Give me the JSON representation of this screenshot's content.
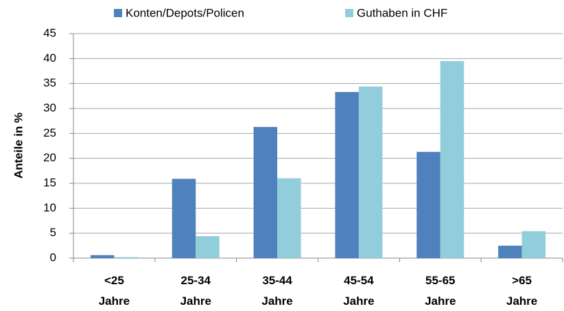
{
  "chart_data": {
    "type": "bar",
    "y_label": "Anteile in %",
    "categories": [
      "<25 Jahre",
      "25-34 Jahre",
      "35-44 Jahre",
      "45-54 Jahre",
      "55-65 Jahre",
      ">65 Jahre"
    ],
    "series": [
      {
        "name": "Konten/Depots/Policen",
        "color": "#4f81bd",
        "values": [
          0.6,
          15.9,
          26.3,
          33.3,
          21.3,
          2.5
        ]
      },
      {
        "name": "Guthaben in CHF",
        "color": "#92cddc",
        "values": [
          0.2,
          4.4,
          16.0,
          34.4,
          39.5,
          5.4
        ]
      }
    ],
    "ylim": [
      0,
      45
    ],
    "yticks": [
      0,
      5,
      10,
      15,
      20,
      25,
      30,
      35,
      40,
      45
    ],
    "grid": true,
    "legend": "top"
  }
}
